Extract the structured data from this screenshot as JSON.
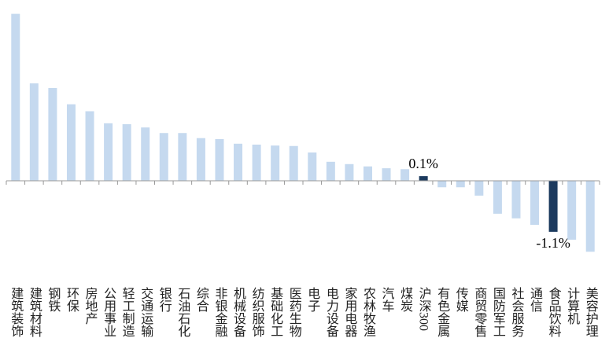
{
  "chart_data": {
    "type": "bar",
    "categories": [
      "建筑装饰",
      "建筑材料",
      "钢铁",
      "环保",
      "房地产",
      "公用事业",
      "轻工制造",
      "交通运输",
      "银行",
      "石油石化",
      "综合",
      "非银金融",
      "机械设备",
      "纺织服饰",
      "基础化工",
      "医药生物",
      "电子",
      "电力设备",
      "家用电器",
      "农林牧渔",
      "汽车",
      "煤炭",
      "沪深300",
      "有色金属",
      "传媒",
      "商贸零售",
      "国防军工",
      "社会服务",
      "通信",
      "食品饮料",
      "计算机",
      "美容护理"
    ],
    "values": [
      3.6,
      2.1,
      2.0,
      1.65,
      1.5,
      1.24,
      1.22,
      1.15,
      1.03,
      1.03,
      0.92,
      0.9,
      0.8,
      0.78,
      0.76,
      0.75,
      0.61,
      0.41,
      0.36,
      0.31,
      0.27,
      0.25,
      0.1,
      -0.14,
      -0.14,
      -0.32,
      -0.71,
      -0.81,
      -0.95,
      -1.1,
      -1.27,
      -1.53
    ],
    "value_labels": [
      null,
      null,
      null,
      null,
      null,
      null,
      null,
      null,
      null,
      null,
      null,
      null,
      null,
      null,
      null,
      null,
      null,
      null,
      null,
      null,
      null,
      null,
      "0.1%",
      null,
      null,
      null,
      null,
      null,
      null,
      "-1.1%",
      null,
      null
    ],
    "colors": [
      "#c5d9ef",
      "#c5d9ef",
      "#c5d9ef",
      "#c5d9ef",
      "#c5d9ef",
      "#c5d9ef",
      "#c5d9ef",
      "#c5d9ef",
      "#c5d9ef",
      "#c5d9ef",
      "#c5d9ef",
      "#c5d9ef",
      "#c5d9ef",
      "#c5d9ef",
      "#c5d9ef",
      "#c5d9ef",
      "#c5d9ef",
      "#c5d9ef",
      "#c5d9ef",
      "#c5d9ef",
      "#c5d9ef",
      "#c5d9ef",
      "#1c3a5e",
      "#c5d9ef",
      "#c5d9ef",
      "#c5d9ef",
      "#c5d9ef",
      "#c5d9ef",
      "#c5d9ef",
      "#1c3a5e",
      "#c5d9ef",
      "#c5d9ef"
    ],
    "ylim": [
      -1.6,
      3.7
    ]
  }
}
